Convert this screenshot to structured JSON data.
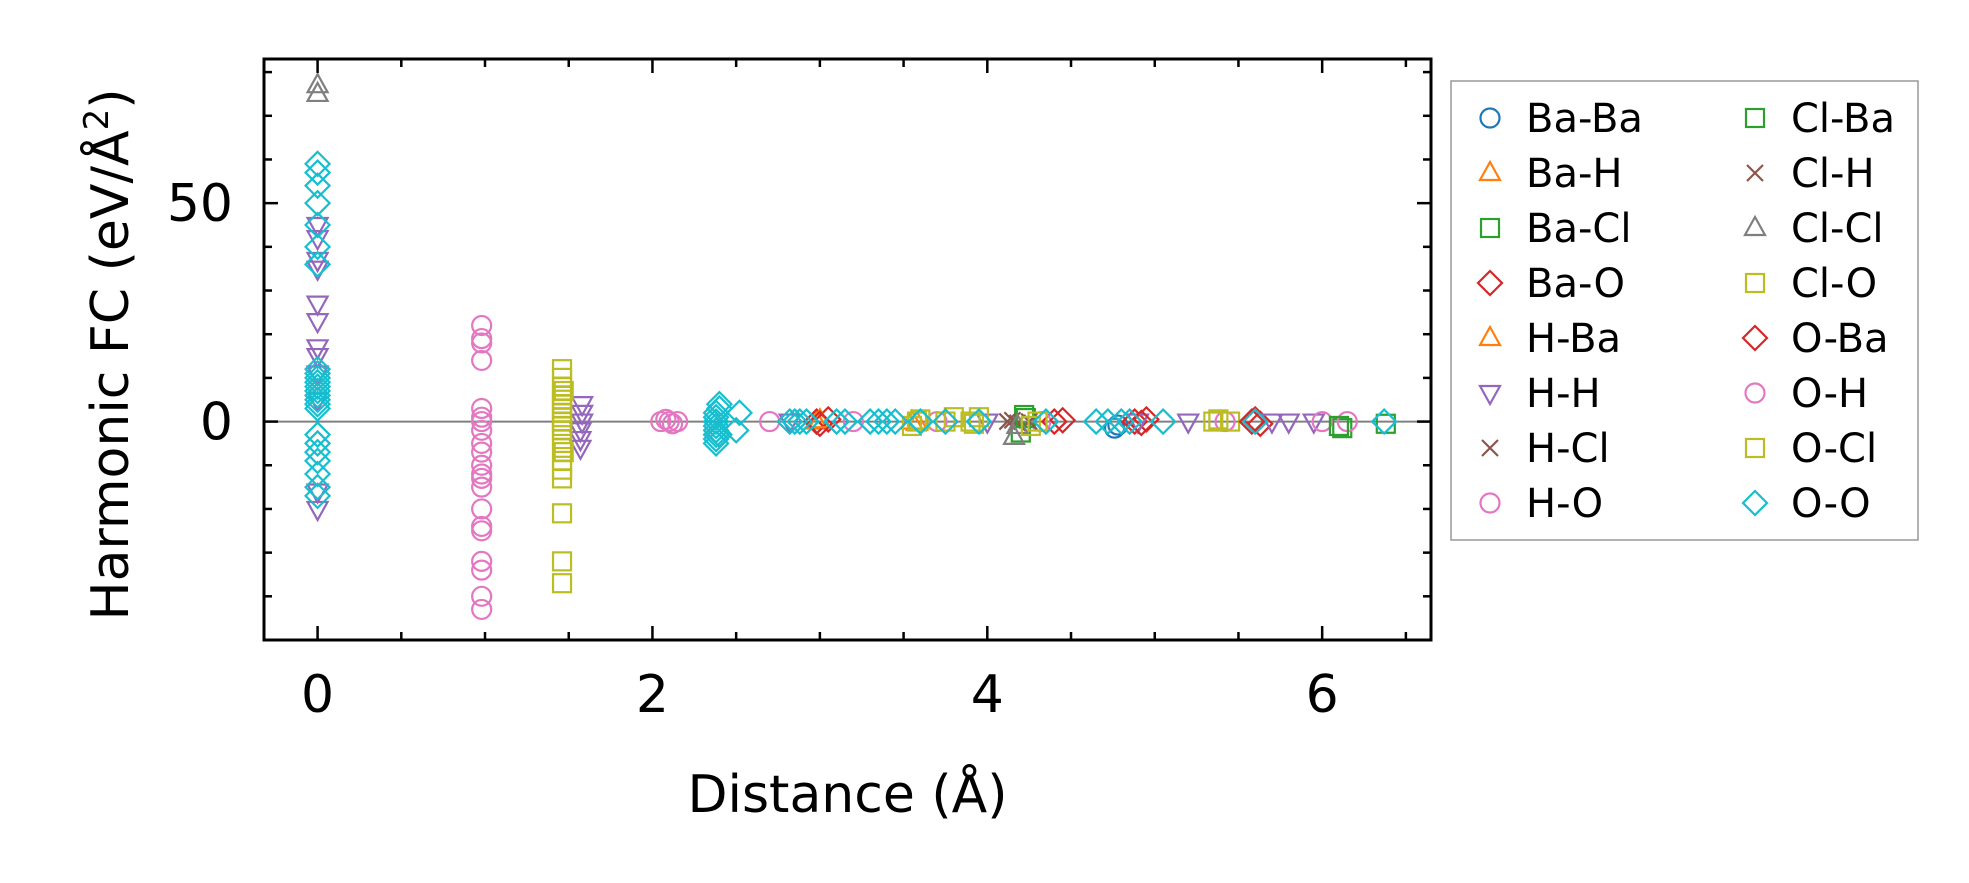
{
  "chart_data": {
    "type": "scatter",
    "title": "",
    "xlabel": "Distance (Å)",
    "ylabel_prefix": "Harmonic FC (eV/Å",
    "ylabel_sup": "2",
    "ylabel_suffix": ")",
    "xlim": [
      -0.32,
      6.65
    ],
    "ylim": [
      -50,
      83
    ],
    "xticks": [
      0,
      2,
      4,
      6
    ],
    "xtick_labels": [
      "0",
      "2",
      "4",
      "6"
    ],
    "yticks": [
      0,
      50
    ],
    "ytick_labels": [
      "0",
      "50"
    ],
    "x_minor_step": 0.5,
    "y_minor_step": 10,
    "hline_y": 0,
    "legend_position": "outside-right",
    "series": [
      {
        "name": "Ba-Ba",
        "marker": "circle",
        "color": "#1f77b4",
        "x": [
          4.76,
          4.78
        ],
        "y": [
          -1.5,
          -0.8
        ]
      },
      {
        "name": "Ba-H",
        "marker": "triangle-up",
        "color": "#ff7f0e",
        "x": [
          2.98,
          3.55
        ],
        "y": [
          0,
          0
        ]
      },
      {
        "name": "Ba-Cl",
        "marker": "square",
        "color": "#2ca02c",
        "x": [
          4.2,
          4.22,
          6.12,
          6.38
        ],
        "y": [
          -2.5,
          1.5,
          -1.5,
          -0.5
        ]
      },
      {
        "name": "Ba-O",
        "marker": "diamond",
        "color": "#d62728",
        "x": [
          2.98,
          3.05,
          4.4,
          4.88,
          4.95,
          5.6,
          5.63
        ],
        "y": [
          0,
          0.5,
          0,
          0,
          0.5,
          0.5,
          -0.5
        ]
      },
      {
        "name": "H-Ba",
        "marker": "triangle-up",
        "color": "#ff7f0e",
        "x": [
          3.0,
          3.58
        ],
        "y": [
          0.3,
          -0.3
        ]
      },
      {
        "name": "H-H",
        "marker": "triangle-down",
        "color": "#9467bd",
        "x": [
          0,
          0,
          0,
          0,
          0,
          0,
          0,
          0,
          0,
          0,
          0,
          0,
          1.57,
          1.57,
          1.57,
          1.58,
          1.58,
          1.58,
          2.82,
          4.0,
          4.9,
          5.2,
          5.7,
          5.8,
          5.95
        ],
        "y": [
          -20,
          -16,
          5,
          11,
          15,
          17,
          23,
          27,
          35,
          37,
          42,
          45,
          -6,
          -4,
          -2,
          0,
          2,
          4,
          0,
          0,
          0,
          0,
          0,
          0,
          0
        ]
      },
      {
        "name": "H-Cl",
        "marker": "cross",
        "color": "#8c564b",
        "x": [
          4.15,
          4.18
        ],
        "y": [
          0.3,
          -0.3
        ]
      },
      {
        "name": "H-O",
        "marker": "circle",
        "color": "#e377c2",
        "x": [
          0.98,
          0.98,
          0.98,
          0.98,
          0.98,
          0.98,
          0.98,
          0.98,
          0.98,
          0.98,
          0.98,
          0.98,
          0.98,
          0.98,
          0.98,
          0.98,
          0.98,
          0.98,
          2.05,
          2.1,
          2.15,
          2.7,
          3.2,
          3.7,
          4.32,
          5.42,
          6.0,
          6.15
        ],
        "y": [
          -43,
          -40,
          -34,
          -32,
          -24,
          -20,
          -15,
          -13,
          -10,
          -7,
          -5,
          -2,
          0,
          3,
          14,
          18,
          19,
          22,
          0,
          0,
          0,
          0,
          0,
          0,
          0,
          0,
          0,
          0
        ]
      },
      {
        "name": "Cl-Ba",
        "marker": "square",
        "color": "#2ca02c",
        "x": [
          4.23,
          6.1
        ],
        "y": [
          0.8,
          -1
        ]
      },
      {
        "name": "Cl-H",
        "marker": "cross",
        "color": "#8c564b",
        "x": [
          4.12,
          4.25
        ],
        "y": [
          0,
          0
        ]
      },
      {
        "name": "Cl-Cl",
        "marker": "triangle-up",
        "color": "#7f7f7f",
        "x": [
          0,
          0,
          4.16,
          4.18
        ],
        "y": [
          75,
          77,
          -3.5,
          -1
        ]
      },
      {
        "name": "Cl-O",
        "marker": "square",
        "color": "#bcbd22",
        "x": [
          1.46,
          1.46,
          1.46,
          1.46,
          1.46,
          1.46,
          1.46,
          1.46,
          1.46,
          1.46,
          1.46,
          1.46,
          1.46,
          1.46,
          1.46,
          1.46,
          1.46,
          1.46,
          1.46,
          1.46,
          3.55,
          3.58,
          3.75,
          3.8,
          3.9,
          3.95,
          4.26,
          4.3,
          5.35,
          5.45
        ],
        "y": [
          -37,
          -32,
          -21,
          -13,
          -11,
          -9,
          -6,
          -4,
          -2,
          -1,
          0,
          1,
          2,
          3,
          4,
          5,
          6,
          8,
          10,
          12,
          -1,
          0,
          0,
          1,
          0,
          1,
          -1,
          0,
          0,
          0
        ]
      },
      {
        "name": "O-Ba",
        "marker": "diamond",
        "color": "#d62728",
        "x": [
          3.0,
          4.45,
          4.92,
          5.58
        ],
        "y": [
          -0.5,
          0.3,
          -0.3,
          0
        ]
      },
      {
        "name": "O-H",
        "marker": "circle",
        "color": "#e377c2",
        "x": [
          0.98,
          0.98,
          0.98,
          2.08,
          2.12
        ],
        "y": [
          -25,
          -12,
          1,
          0.5,
          -0.5
        ]
      },
      {
        "name": "O-Cl",
        "marker": "square",
        "color": "#bcbd22",
        "x": [
          1.47,
          1.47,
          3.6,
          3.92,
          5.38
        ],
        "y": [
          -7,
          7,
          0.5,
          -0.5,
          0.5
        ]
      },
      {
        "name": "O-O",
        "marker": "diamond",
        "color": "#17becf",
        "x": [
          0,
          0,
          0,
          0,
          0,
          0,
          0,
          0,
          0,
          0,
          0,
          0,
          0,
          0,
          0,
          0,
          0,
          0,
          0,
          0,
          0,
          0,
          0,
          0,
          2.38,
          2.38,
          2.38,
          2.38,
          2.38,
          2.38,
          2.38,
          2.38,
          2.4,
          2.4,
          2.4,
          2.5,
          2.52,
          2.82,
          2.85,
          2.88,
          2.92,
          3.1,
          3.15,
          3.3,
          3.35,
          3.4,
          3.45,
          3.6,
          3.75,
          3.95,
          4.35,
          4.65,
          4.72,
          4.8,
          4.85,
          5.05,
          5.6,
          6.37
        ],
        "y": [
          -17,
          -15,
          -12,
          -9,
          -7,
          -5,
          -3,
          3,
          4,
          5,
          6,
          7,
          8,
          9,
          10,
          11,
          12,
          36,
          40,
          45,
          50,
          54,
          57,
          59,
          -5,
          -4,
          -3,
          -2,
          -1,
          0,
          1,
          2,
          3,
          4,
          -3,
          -2,
          2,
          0,
          0,
          0,
          0,
          0,
          0,
          0,
          0,
          0,
          0,
          0,
          0,
          0,
          0,
          0,
          0,
          0,
          0,
          0,
          0,
          0
        ]
      }
    ]
  }
}
